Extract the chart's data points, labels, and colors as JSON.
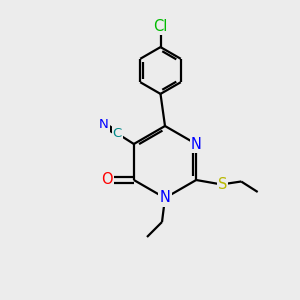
{
  "background_color": "#ececec",
  "bond_color": "#000000",
  "atom_colors": {
    "N": "#0000ff",
    "O": "#ff0000",
    "S": "#b8b800",
    "Cl": "#00bb00",
    "C_cyan": "#008888",
    "C_default": "#000000"
  },
  "figsize": [
    3.0,
    3.0
  ],
  "dpi": 100,
  "lw": 1.6,
  "fs": 9.5
}
